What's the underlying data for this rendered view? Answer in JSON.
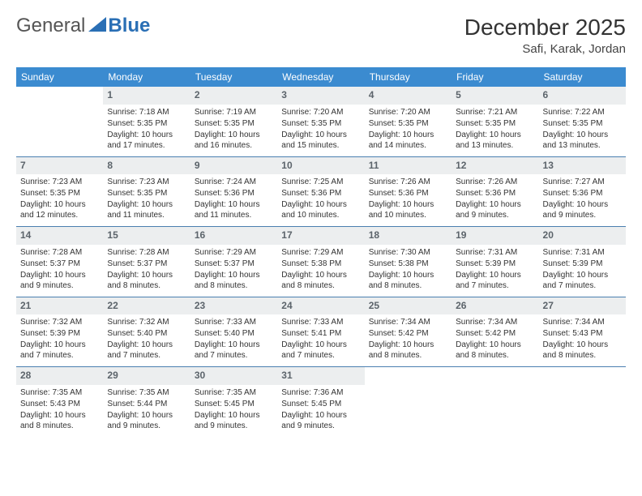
{
  "logo": {
    "text1": "General",
    "text2": "Blue"
  },
  "title": "December 2025",
  "location": "Safi, Karak, Jordan",
  "colors": {
    "header_bg": "#3b8bd0",
    "header_text": "#ffffff",
    "daynum_bg": "#eceeef",
    "daynum_text": "#5c646b",
    "row_border": "#4a7fb0",
    "logo_blue": "#2a6fb5",
    "body_bg": "#ffffff"
  },
  "fonts": {
    "title_size": 28,
    "location_size": 15,
    "header_size": 12,
    "daynum_size": 12,
    "cell_size": 10
  },
  "weekdays": [
    "Sunday",
    "Monday",
    "Tuesday",
    "Wednesday",
    "Thursday",
    "Friday",
    "Saturday"
  ],
  "layout": {
    "first_day_column": 1,
    "days_in_month": 31,
    "rows": 5,
    "cols": 7
  },
  "days": [
    {
      "n": 1,
      "sunrise": "7:18 AM",
      "sunset": "5:35 PM",
      "daylight": "10 hours and 17 minutes."
    },
    {
      "n": 2,
      "sunrise": "7:19 AM",
      "sunset": "5:35 PM",
      "daylight": "10 hours and 16 minutes."
    },
    {
      "n": 3,
      "sunrise": "7:20 AM",
      "sunset": "5:35 PM",
      "daylight": "10 hours and 15 minutes."
    },
    {
      "n": 4,
      "sunrise": "7:20 AM",
      "sunset": "5:35 PM",
      "daylight": "10 hours and 14 minutes."
    },
    {
      "n": 5,
      "sunrise": "7:21 AM",
      "sunset": "5:35 PM",
      "daylight": "10 hours and 13 minutes."
    },
    {
      "n": 6,
      "sunrise": "7:22 AM",
      "sunset": "5:35 PM",
      "daylight": "10 hours and 13 minutes."
    },
    {
      "n": 7,
      "sunrise": "7:23 AM",
      "sunset": "5:35 PM",
      "daylight": "10 hours and 12 minutes."
    },
    {
      "n": 8,
      "sunrise": "7:23 AM",
      "sunset": "5:35 PM",
      "daylight": "10 hours and 11 minutes."
    },
    {
      "n": 9,
      "sunrise": "7:24 AM",
      "sunset": "5:36 PM",
      "daylight": "10 hours and 11 minutes."
    },
    {
      "n": 10,
      "sunrise": "7:25 AM",
      "sunset": "5:36 PM",
      "daylight": "10 hours and 10 minutes."
    },
    {
      "n": 11,
      "sunrise": "7:26 AM",
      "sunset": "5:36 PM",
      "daylight": "10 hours and 10 minutes."
    },
    {
      "n": 12,
      "sunrise": "7:26 AM",
      "sunset": "5:36 PM",
      "daylight": "10 hours and 9 minutes."
    },
    {
      "n": 13,
      "sunrise": "7:27 AM",
      "sunset": "5:36 PM",
      "daylight": "10 hours and 9 minutes."
    },
    {
      "n": 14,
      "sunrise": "7:28 AM",
      "sunset": "5:37 PM",
      "daylight": "10 hours and 9 minutes."
    },
    {
      "n": 15,
      "sunrise": "7:28 AM",
      "sunset": "5:37 PM",
      "daylight": "10 hours and 8 minutes."
    },
    {
      "n": 16,
      "sunrise": "7:29 AM",
      "sunset": "5:37 PM",
      "daylight": "10 hours and 8 minutes."
    },
    {
      "n": 17,
      "sunrise": "7:29 AM",
      "sunset": "5:38 PM",
      "daylight": "10 hours and 8 minutes."
    },
    {
      "n": 18,
      "sunrise": "7:30 AM",
      "sunset": "5:38 PM",
      "daylight": "10 hours and 8 minutes."
    },
    {
      "n": 19,
      "sunrise": "7:31 AM",
      "sunset": "5:39 PM",
      "daylight": "10 hours and 7 minutes."
    },
    {
      "n": 20,
      "sunrise": "7:31 AM",
      "sunset": "5:39 PM",
      "daylight": "10 hours and 7 minutes."
    },
    {
      "n": 21,
      "sunrise": "7:32 AM",
      "sunset": "5:39 PM",
      "daylight": "10 hours and 7 minutes."
    },
    {
      "n": 22,
      "sunrise": "7:32 AM",
      "sunset": "5:40 PM",
      "daylight": "10 hours and 7 minutes."
    },
    {
      "n": 23,
      "sunrise": "7:33 AM",
      "sunset": "5:40 PM",
      "daylight": "10 hours and 7 minutes."
    },
    {
      "n": 24,
      "sunrise": "7:33 AM",
      "sunset": "5:41 PM",
      "daylight": "10 hours and 7 minutes."
    },
    {
      "n": 25,
      "sunrise": "7:34 AM",
      "sunset": "5:42 PM",
      "daylight": "10 hours and 8 minutes."
    },
    {
      "n": 26,
      "sunrise": "7:34 AM",
      "sunset": "5:42 PM",
      "daylight": "10 hours and 8 minutes."
    },
    {
      "n": 27,
      "sunrise": "7:34 AM",
      "sunset": "5:43 PM",
      "daylight": "10 hours and 8 minutes."
    },
    {
      "n": 28,
      "sunrise": "7:35 AM",
      "sunset": "5:43 PM",
      "daylight": "10 hours and 8 minutes."
    },
    {
      "n": 29,
      "sunrise": "7:35 AM",
      "sunset": "5:44 PM",
      "daylight": "10 hours and 9 minutes."
    },
    {
      "n": 30,
      "sunrise": "7:35 AM",
      "sunset": "5:45 PM",
      "daylight": "10 hours and 9 minutes."
    },
    {
      "n": 31,
      "sunrise": "7:36 AM",
      "sunset": "5:45 PM",
      "daylight": "10 hours and 9 minutes."
    }
  ],
  "labels": {
    "sunrise": "Sunrise:",
    "sunset": "Sunset:",
    "daylight": "Daylight:"
  }
}
